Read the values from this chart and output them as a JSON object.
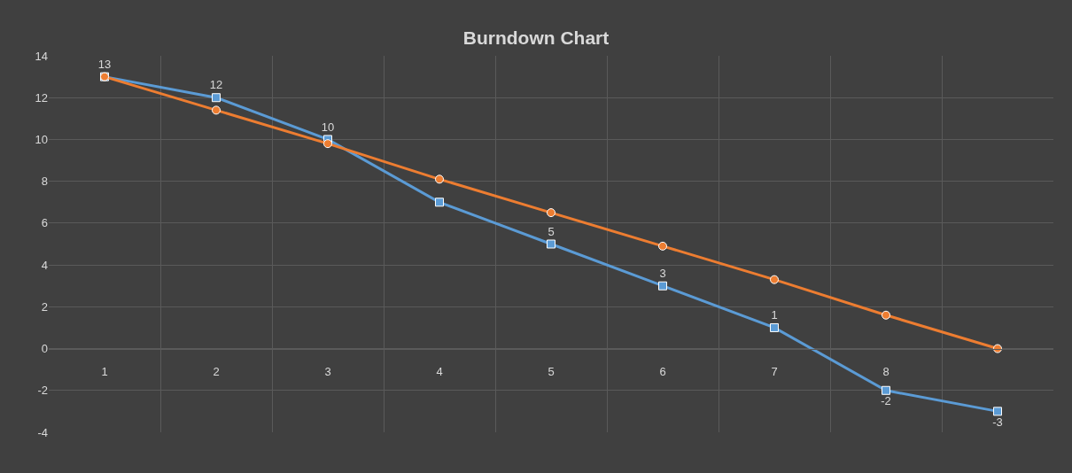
{
  "chart_data": {
    "type": "line",
    "title": "Burndown Chart",
    "categories": [
      "1",
      "2",
      "3",
      "4",
      "5",
      "6",
      "7",
      "8",
      null
    ],
    "series": [
      {
        "color": "#5b9bd5",
        "marker": "square",
        "values": [
          13,
          12,
          10,
          7,
          5,
          3,
          1,
          -2,
          -3
        ],
        "value_labels": [
          "13",
          "12",
          "10",
          null,
          "5",
          "3",
          "1",
          "-2",
          "-3"
        ]
      },
      {
        "color": "#ed7d31",
        "marker": "circle",
        "values": [
          13,
          11.4,
          9.8,
          8.1,
          6.5,
          4.9,
          3.3,
          1.6,
          0
        ]
      }
    ],
    "ylim": [
      -4,
      14
    ],
    "yticks": [
      -4,
      -2,
      0,
      2,
      4,
      6,
      8,
      10,
      12,
      14
    ],
    "grid": true
  }
}
